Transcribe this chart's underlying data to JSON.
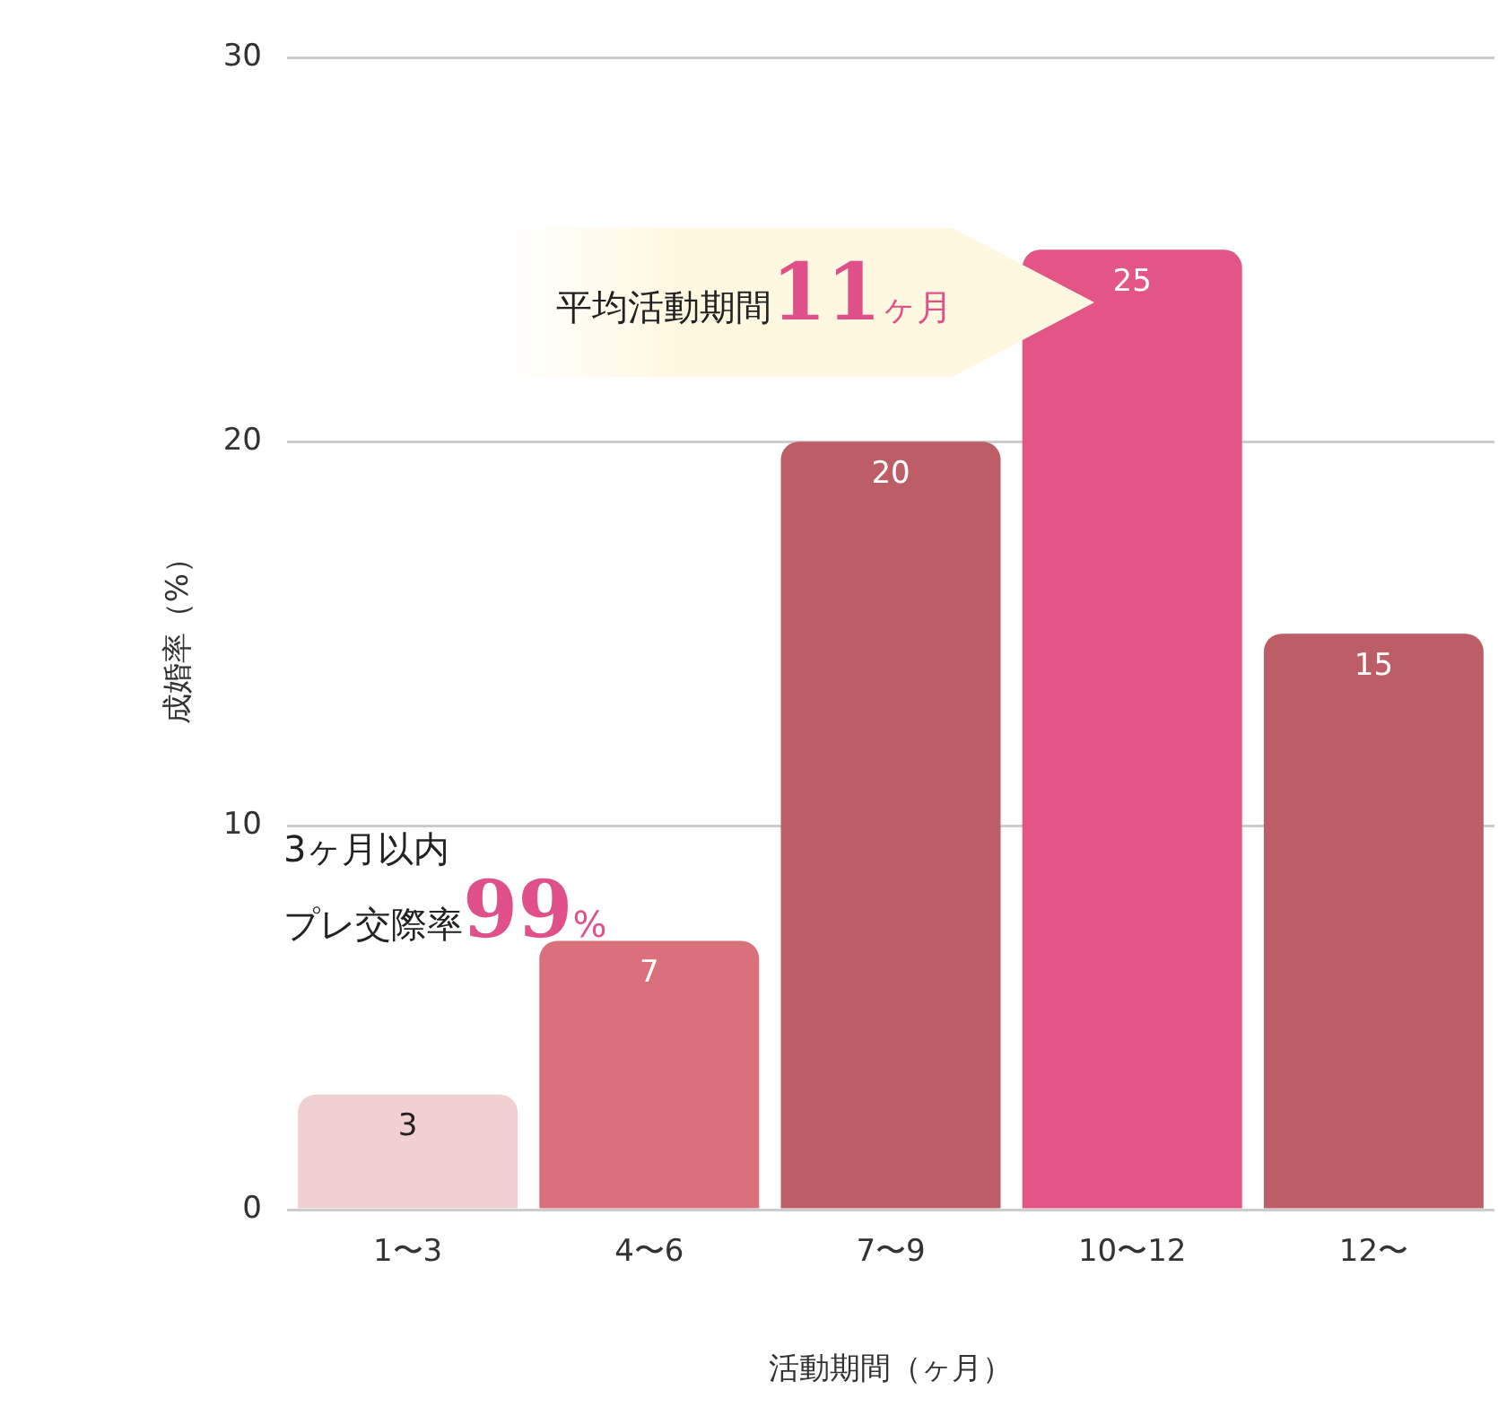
{
  "chart_data": {
    "type": "bar",
    "xlabel": "活動期間（ヶ月）",
    "ylabel": "成婚率（%）",
    "categories": [
      "1〜3",
      "4〜6",
      "7〜9",
      "10〜12",
      "12〜"
    ],
    "values": [
      3,
      7,
      20,
      25,
      15
    ],
    "colors": [
      "#f0d0d0",
      "#d9707b",
      "#bd5e67",
      "#e35586",
      "#bd5e67"
    ],
    "ylim": [
      0,
      30
    ],
    "yticks": [
      0,
      10,
      20,
      30
    ],
    "grid": "y",
    "data_labels": true,
    "annotations": [
      "平均活動期間11ヶ月",
      "3ヶ月以内",
      "プレ交際率99%"
    ]
  }
}
